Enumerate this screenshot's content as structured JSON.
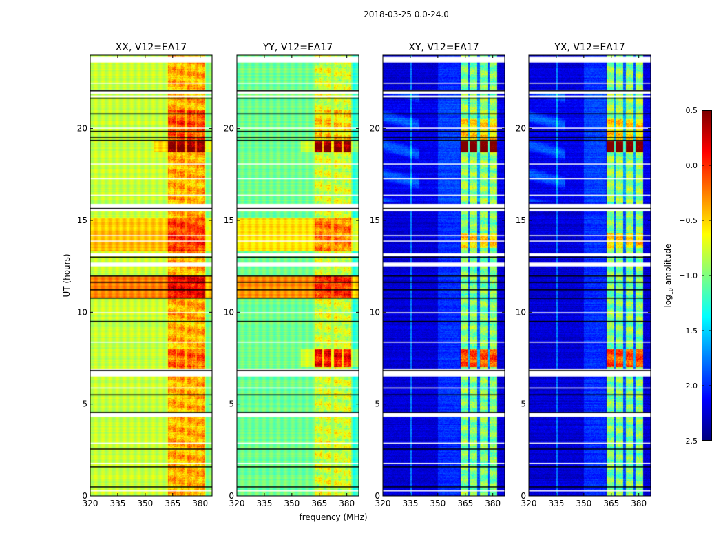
{
  "chart_data": {
    "type": "heatmap",
    "title": "2018-03-25 0.0-24.0",
    "xlabel": "frequency (MHz)",
    "ylabel": "UT (hours)",
    "xlim": [
      320,
      386.5
    ],
    "ylim": [
      0,
      24
    ],
    "xticks": [
      320,
      335,
      350,
      365,
      380
    ],
    "yticks": [
      0,
      5,
      10,
      15,
      20
    ],
    "colorbar": {
      "label": "log10 amplitude",
      "label_main": "log",
      "label_sub": "10",
      "label_rest": " amplitude",
      "range": [
        -2.5,
        0.5
      ],
      "ticks": [
        "0.5",
        "0.0",
        "−0.5",
        "−1.0",
        "−1.5",
        "−2.0",
        "−2.5"
      ],
      "tick_values": [
        0.5,
        0.0,
        -0.5,
        -1.0,
        -1.5,
        -2.0,
        -2.5
      ],
      "colormap": "jet"
    },
    "rfi_channel_blocks_mhz": [
      [
        362.3,
        366.4
      ],
      [
        367.5,
        371.3
      ],
      [
        372.8,
        377.0
      ],
      [
        378.1,
        382.3
      ]
    ],
    "flagged_white_hours": [
      [
        23.6,
        23.9
      ],
      [
        21.9,
        22.1
      ],
      [
        21.7,
        21.8
      ],
      [
        15.5,
        15.9
      ],
      [
        13.05,
        13.2
      ],
      [
        12.5,
        12.7
      ],
      [
        6.5,
        6.9
      ],
      [
        4.3,
        4.55
      ]
    ],
    "thin_white_hours": [
      22.5,
      20.05,
      18.1,
      17.3,
      16.4,
      14.2,
      13.9,
      10.0,
      8.4,
      5.9,
      2.9,
      1.8,
      0.3
    ],
    "black_line_hours": [
      22.06,
      21.65,
      20.8,
      19.85,
      19.5,
      19.36,
      15.65,
      13.0,
      11.97,
      11.63,
      11.22,
      10.77,
      9.5,
      6.83,
      5.5,
      4.54,
      2.55,
      1.58,
      0.49
    ],
    "panels": [
      {
        "title": "XX, V12=EA17",
        "base": -0.8,
        "rfi": 0.4,
        "gap_drop": 0.05,
        "segments": [
          [
            13.3,
            15.1,
            0.35
          ],
          [
            10.8,
            12.0,
            0.55
          ]
        ],
        "rfi_segments": [
          [
            18.7,
            19.3,
            0.9
          ],
          [
            19.4,
            21.0,
            0.3
          ],
          [
            7.0,
            8.0,
            0.25
          ]
        ]
      },
      {
        "title": "YY, V12=EA17",
        "base": -1.05,
        "rfi": 0.3,
        "gap_drop": 0.1,
        "segments": [
          [
            13.3,
            15.1,
            0.5
          ],
          [
            10.8,
            12.0,
            0.75
          ]
        ],
        "rfi_segments": [
          [
            18.7,
            19.3,
            1.25
          ],
          [
            7.0,
            8.0,
            0.85
          ],
          [
            19.4,
            21.0,
            0.25
          ]
        ]
      },
      {
        "title": "XY, V12=EA17",
        "base": -2.25,
        "rfi": 1.25,
        "gap_drop": 0.9,
        "segments": [
          [
            16.0,
            22.0,
            0.25
          ]
        ],
        "rfi_segments": [
          [
            18.7,
            19.3,
            1.6
          ],
          [
            7.0,
            8.0,
            0.9
          ],
          [
            13.5,
            14.3,
            0.5
          ],
          [
            19.4,
            20.5,
            0.4
          ]
        ]
      },
      {
        "title": "YX, V12=EA17",
        "base": -2.25,
        "rfi": 1.25,
        "gap_drop": 0.9,
        "segments": [
          [
            16.0,
            22.0,
            0.25
          ]
        ],
        "rfi_segments": [
          [
            18.7,
            19.3,
            1.6
          ],
          [
            7.0,
            8.0,
            0.9
          ],
          [
            13.5,
            14.3,
            0.5
          ],
          [
            19.4,
            20.5,
            0.4
          ]
        ]
      }
    ]
  }
}
